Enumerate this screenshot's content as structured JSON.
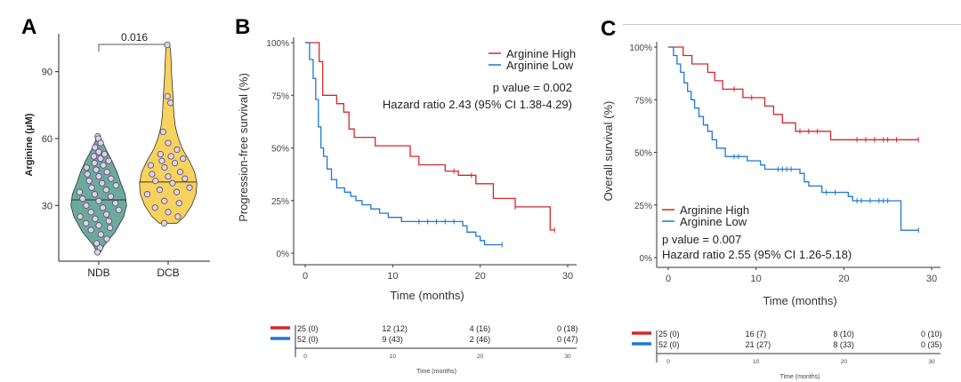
{
  "panels": {
    "A": {
      "letter": "A",
      "chart_data": {
        "type": "violin",
        "ylabel": "Arginine (μM)",
        "categories": [
          "NDB",
          "DCB"
        ],
        "yticks": [
          30,
          60,
          90
        ],
        "ylim": [
          5,
          107
        ],
        "comparison_label": "0.016",
        "colors": {
          "NDB": "#6aab9c",
          "DCB": "#f6d25e"
        },
        "medians": [
          32.5,
          40.5
        ],
        "ranges": [
          [
            8,
            62
          ],
          [
            22,
            103
          ]
        ],
        "points": {
          "NDB": [
            61,
            60,
            58,
            56,
            54,
            53,
            52,
            51,
            50,
            49,
            48,
            47,
            46,
            45,
            44,
            43,
            42,
            41,
            40,
            39,
            38,
            37,
            36,
            35,
            34,
            33,
            32,
            31,
            30,
            29,
            28,
            27,
            26,
            25,
            24,
            23,
            22,
            21,
            20,
            19,
            17,
            15,
            13,
            11,
            9
          ],
          "DCB": [
            102,
            79,
            76,
            63,
            58,
            55,
            53,
            52,
            51,
            50,
            49,
            48,
            47,
            45,
            44,
            43,
            42,
            41,
            40,
            38,
            37,
            36,
            35,
            32,
            31,
            29,
            27,
            25,
            22
          ]
        }
      }
    },
    "B": {
      "letter": "B",
      "chart_data": {
        "type": "line",
        "xlabel": "Time (months)",
        "ylabel": "Progression-free survival (%)",
        "xlim": [
          0,
          30
        ],
        "ylim": [
          0,
          100
        ],
        "xticks": [
          0,
          10,
          20,
          30
        ],
        "yticks": [
          "0%",
          "25%",
          "50%",
          "75%",
          "100%"
        ],
        "series": [
          {
            "name": "Arginine High",
            "color": "#d62728",
            "steps": [
              [
                0,
                100
              ],
              [
                1.6,
                100
              ],
              [
                1.6,
                91
              ],
              [
                2,
                91
              ],
              [
                2,
                75
              ],
              [
                3.6,
                75
              ],
              [
                3.6,
                71
              ],
              [
                4.4,
                71
              ],
              [
                4.4,
                67
              ],
              [
                5,
                67
              ],
              [
                5,
                59
              ],
              [
                5.6,
                59
              ],
              [
                5.6,
                55
              ],
              [
                8,
                55
              ],
              [
                8,
                51
              ],
              [
                12,
                51
              ],
              [
                12,
                46
              ],
              [
                13,
                46
              ],
              [
                13,
                42
              ],
              [
                16,
                42
              ],
              [
                16,
                39
              ],
              [
                17.5,
                39
              ],
              [
                17.5,
                37
              ],
              [
                19.5,
                37
              ],
              [
                19.5,
                33
              ],
              [
                21.5,
                33
              ],
              [
                21.5,
                26
              ],
              [
                24,
                26
              ],
              [
                24,
                22
              ],
              [
                28,
                22
              ],
              [
                28,
                11
              ],
              [
                28.5,
                11
              ]
            ],
            "censors": [
              [
                17,
                39
              ],
              [
                19,
                37
              ],
              [
                24,
                22
              ],
              [
                28.5,
                11
              ]
            ]
          },
          {
            "name": "Arginine Low",
            "color": "#1f77d4",
            "steps": [
              [
                0,
                100
              ],
              [
                0.5,
                100
              ],
              [
                0.5,
                92
              ],
              [
                0.9,
                92
              ],
              [
                0.9,
                83
              ],
              [
                1.2,
                83
              ],
              [
                1.2,
                73
              ],
              [
                1.5,
                73
              ],
              [
                1.5,
                60
              ],
              [
                1.8,
                60
              ],
              [
                1.8,
                50
              ],
              [
                2.1,
                50
              ],
              [
                2.1,
                46
              ],
              [
                2.5,
                46
              ],
              [
                2.5,
                40
              ],
              [
                3,
                40
              ],
              [
                3,
                35
              ],
              [
                3.6,
                35
              ],
              [
                3.6,
                31
              ],
              [
                4.5,
                31
              ],
              [
                4.5,
                29
              ],
              [
                5.2,
                29
              ],
              [
                5.2,
                27
              ],
              [
                5.8,
                27
              ],
              [
                5.8,
                25
              ],
              [
                6.5,
                25
              ],
              [
                6.5,
                23
              ],
              [
                7.5,
                23
              ],
              [
                7.5,
                21
              ],
              [
                8.5,
                21
              ],
              [
                8.5,
                19
              ],
              [
                9.5,
                19
              ],
              [
                9.5,
                17
              ],
              [
                11,
                17
              ],
              [
                11,
                15
              ],
              [
                18,
                15
              ],
              [
                18,
                13
              ],
              [
                18.5,
                13
              ],
              [
                18.5,
                10
              ],
              [
                19.5,
                10
              ],
              [
                19.5,
                8
              ],
              [
                20,
                8
              ],
              [
                20,
                6
              ],
              [
                20.5,
                6
              ],
              [
                20.5,
                4
              ],
              [
                22.5,
                4
              ]
            ],
            "censors": [
              [
                13,
                15
              ],
              [
                14,
                15
              ],
              [
                15,
                15
              ],
              [
                16,
                15
              ],
              [
                17,
                15
              ],
              [
                22.5,
                4
              ]
            ]
          }
        ],
        "annotations": {
          "p_value": "p value = 0.002",
          "hazard_ratio": "Hazard ratio 2.43 (95% CI 1.38-4.29)"
        },
        "risk_table": {
          "rows": [
            {
              "color": "#d62728",
              "cells": [
                "25 (0)",
                "12 (12)",
                "4 (16)",
                "0 (18)"
              ]
            },
            {
              "color": "#1f77d4",
              "cells": [
                "52 (0)",
                "9 (43)",
                "2 (46)",
                "0 (47)"
              ]
            }
          ],
          "ticks": [
            "0",
            "10",
            "20",
            "30"
          ],
          "xlabel": "Time (months)"
        }
      }
    },
    "C": {
      "letter": "C",
      "chart_data": {
        "type": "line",
        "xlabel": "Time (months)",
        "ylabel": "Overall survival (%)",
        "xlim": [
          0,
          30
        ],
        "ylim": [
          0,
          100
        ],
        "xticks": [
          0,
          10,
          20,
          30
        ],
        "yticks": [
          "0%",
          "25%",
          "50%",
          "75%",
          "100%"
        ],
        "series": [
          {
            "name": "Arginine High",
            "color": "#d62728",
            "steps": [
              [
                0,
                100
              ],
              [
                1.7,
                100
              ],
              [
                1.7,
                96
              ],
              [
                2.7,
                96
              ],
              [
                2.7,
                92
              ],
              [
                4.5,
                92
              ],
              [
                4.5,
                88
              ],
              [
                5.3,
                88
              ],
              [
                5.3,
                84
              ],
              [
                6.2,
                84
              ],
              [
                6.2,
                80
              ],
              [
                8.5,
                80
              ],
              [
                8.5,
                76
              ],
              [
                11,
                76
              ],
              [
                11,
                72
              ],
              [
                12,
                72
              ],
              [
                12,
                68
              ],
              [
                13,
                68
              ],
              [
                13,
                64
              ],
              [
                14.5,
                64
              ],
              [
                14.5,
                60
              ],
              [
                18.5,
                60
              ],
              [
                18.5,
                56
              ],
              [
                28.5,
                56
              ]
            ],
            "censors": [
              [
                7.5,
                80
              ],
              [
                9.5,
                76
              ],
              [
                15,
                60
              ],
              [
                16,
                60
              ],
              [
                17,
                60
              ],
              [
                21.5,
                56
              ],
              [
                22.5,
                56
              ],
              [
                23.5,
                56
              ],
              [
                24.5,
                56
              ],
              [
                25,
                56
              ],
              [
                26,
                56
              ],
              [
                28.5,
                56
              ]
            ]
          },
          {
            "name": "Arginine Low",
            "color": "#1f77d4",
            "steps": [
              [
                0,
                100
              ],
              [
                0.6,
                100
              ],
              [
                0.6,
                96
              ],
              [
                1,
                96
              ],
              [
                1,
                92
              ],
              [
                1.4,
                92
              ],
              [
                1.4,
                88
              ],
              [
                1.8,
                88
              ],
              [
                1.8,
                83
              ],
              [
                2.2,
                83
              ],
              [
                2.2,
                79
              ],
              [
                2.6,
                79
              ],
              [
                2.6,
                75
              ],
              [
                3,
                75
              ],
              [
                3,
                71
              ],
              [
                3.5,
                71
              ],
              [
                3.5,
                67
              ],
              [
                4,
                67
              ],
              [
                4,
                63
              ],
              [
                4.5,
                63
              ],
              [
                4.5,
                60
              ],
              [
                5,
                60
              ],
              [
                5,
                56
              ],
              [
                5.5,
                56
              ],
              [
                5.5,
                52
              ],
              [
                6.5,
                52
              ],
              [
                6.5,
                48
              ],
              [
                9,
                48
              ],
              [
                9,
                46
              ],
              [
                10.5,
                46
              ],
              [
                10.5,
                44
              ],
              [
                11,
                44
              ],
              [
                11,
                42
              ],
              [
                15,
                42
              ],
              [
                15,
                40
              ],
              [
                15.5,
                40
              ],
              [
                15.5,
                36
              ],
              [
                16,
                36
              ],
              [
                16,
                34
              ],
              [
                17.5,
                34
              ],
              [
                17.5,
                31
              ],
              [
                20.5,
                31
              ],
              [
                20.5,
                29
              ],
              [
                21,
                29
              ],
              [
                21,
                27
              ],
              [
                26.5,
                27
              ],
              [
                26.5,
                13
              ],
              [
                28.5,
                13
              ]
            ],
            "censors": [
              [
                7.5,
                48
              ],
              [
                8,
                48
              ],
              [
                12.5,
                42
              ],
              [
                13,
                42
              ],
              [
                13.5,
                42
              ],
              [
                14,
                42
              ],
              [
                18,
                31
              ],
              [
                19,
                31
              ],
              [
                21.5,
                27
              ],
              [
                22,
                27
              ],
              [
                23,
                27
              ],
              [
                24,
                27
              ],
              [
                24.5,
                27
              ],
              [
                25,
                27
              ],
              [
                28.5,
                13
              ]
            ]
          }
        ],
        "annotations": {
          "p_value": "p value = 0.007",
          "hazard_ratio": "Hazard ratio 2.55 (95% CI 1.26-5.18)"
        },
        "risk_table": {
          "rows": [
            {
              "color": "#d62728",
              "cells": [
                "25 (0)",
                "16 (7)",
                "8 (10)",
                "0 (10)"
              ]
            },
            {
              "color": "#1f77d4",
              "cells": [
                "52 (0)",
                "21 (27)",
                "8 (33)",
                "0 (35)"
              ]
            }
          ],
          "ticks": [
            "0",
            "10",
            "20",
            "30"
          ],
          "xlabel": "Time (months)"
        }
      }
    }
  }
}
